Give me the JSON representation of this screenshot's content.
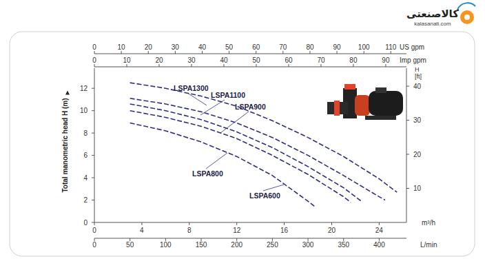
{
  "chart_data": {
    "type": "line",
    "ylabel": "Total manometric head H (m)",
    "ylim": [
      0,
      13.8
    ],
    "yticks": [
      0,
      2,
      4,
      6,
      8,
      10,
      12
    ],
    "y2label": "H [ft]",
    "y2lim": [
      0,
      45.28
    ],
    "y2ticks": [
      10,
      20,
      30,
      40
    ],
    "xlabel": "m³/h",
    "xlim": [
      0,
      26.3
    ],
    "xticks": [
      0,
      4,
      8,
      12,
      16,
      20,
      24
    ],
    "x2label": "L/min",
    "x2lim": [
      0,
      438.3
    ],
    "x2ticks": [
      0,
      50,
      100,
      150,
      200,
      250,
      300,
      350,
      400
    ],
    "x3label": "US gpm",
    "x3lim": [
      0,
      115.8
    ],
    "x3ticks": [
      0,
      10,
      20,
      30,
      40,
      50,
      60,
      70,
      80,
      90,
      100,
      110
    ],
    "x4label": "Imp gpm",
    "x4lim": [
      0,
      96.4
    ],
    "x4ticks": [
      0,
      10,
      20,
      30,
      40,
      50,
      60,
      70,
      80,
      90
    ],
    "grid": false,
    "line_style": "dashed",
    "color": "#2d2e83",
    "series": [
      {
        "name": "LSPA1300",
        "x": [
          3,
          6,
          9,
          12,
          15,
          18,
          21,
          24,
          25.5
        ],
        "values": [
          12.5,
          12.0,
          11.3,
          10.4,
          9.1,
          7.6,
          5.9,
          3.9,
          2.7
        ]
      },
      {
        "name": "LSPA1100",
        "x": [
          3,
          6,
          9,
          12,
          15,
          18,
          21,
          24,
          24.5
        ],
        "values": [
          11.1,
          10.6,
          9.9,
          8.9,
          7.6,
          6.0,
          4.2,
          2.3,
          2.0
        ]
      },
      {
        "name": "LSPA900",
        "x": [
          3,
          6,
          9,
          12,
          15,
          18,
          21,
          22.5
        ],
        "values": [
          10.6,
          10.0,
          9.2,
          8.1,
          6.7,
          5.0,
          3.1,
          1.9
        ]
      },
      {
        "name": "LSPA800",
        "x": [
          3,
          6,
          9,
          12,
          15,
          18,
          21,
          21.6
        ],
        "values": [
          10.0,
          9.4,
          8.6,
          7.5,
          6.0,
          4.3,
          2.3,
          1.8
        ]
      },
      {
        "name": "LSPA600",
        "x": [
          3,
          6,
          9,
          12,
          15,
          18,
          18.6
        ],
        "values": [
          8.9,
          8.2,
          7.2,
          5.9,
          4.2,
          1.9,
          1.4
        ]
      }
    ],
    "annotations": [
      "کالاصنعتی",
      "kalasanati.com"
    ]
  }
}
